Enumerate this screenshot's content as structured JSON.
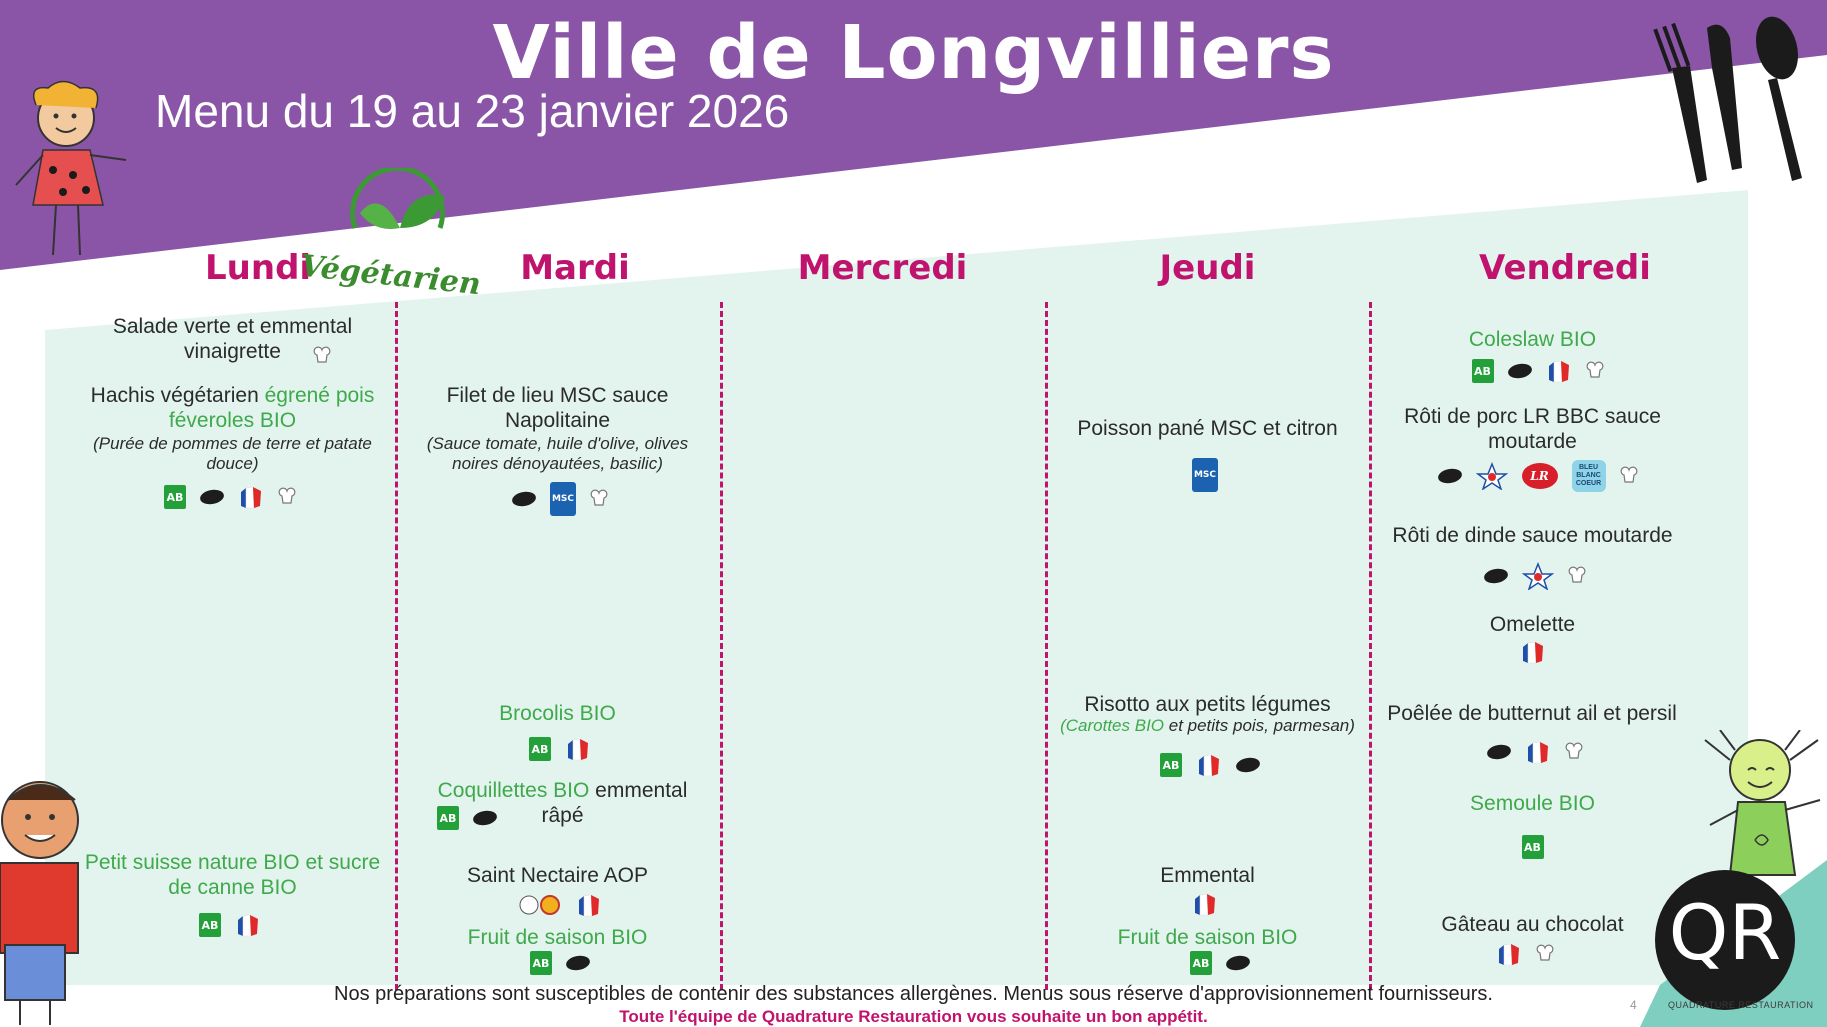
{
  "header": {
    "title": "Ville de Longvilliers",
    "subtitle": "Menu du 19 au 23 janvier 2026"
  },
  "days": {
    "lundi": {
      "name": "Lundi",
      "badge": "Végétarien"
    },
    "mardi": {
      "name": "Mardi"
    },
    "mercredi": {
      "name": "Mercredi"
    },
    "jeudi": {
      "name": "Jeudi"
    },
    "vendredi": {
      "name": "Vendredi"
    }
  },
  "lundi": {
    "starter": "Salade verte et emmental vinaigrette",
    "main_part1": "Hachis végétarien ",
    "main_part2": "égrené pois féveroles BIO",
    "main_note": "(Purée de pommes de terre et patate douce)",
    "dessert": "Petit suisse nature BIO et sucre de canne BIO"
  },
  "mardi": {
    "main": "Filet de lieu MSC sauce Napolitaine",
    "main_note": "(Sauce tomate, huile d'olive, olives noires dénoyautées, basilic)",
    "side1": "Brocolis BIO",
    "side2_part1": "Coquillettes BIO",
    "side2_part2": " emmental râpé",
    "cheese": "Saint Nectaire AOP",
    "dessert": "Fruit de saison BIO"
  },
  "jeudi": {
    "main": "Poisson pané MSC et citron",
    "side": "Risotto aux petits légumes",
    "side_note_part1": "(Carottes BIO",
    "side_note_part2": " et petits pois, parmesan)",
    "cheese": "Emmental",
    "dessert": "Fruit de saison BIO"
  },
  "vendredi": {
    "starter": "Coleslaw BIO",
    "main1": "Rôti de porc LR BBC sauce moutarde",
    "main2": "Rôti de dinde sauce moutarde",
    "main3": "Omelette",
    "side1": "Poêlée de butternut ail et persil",
    "side2": "Semoule BIO",
    "dessert": "Gâteau au chocolat"
  },
  "labels": {
    "ab": "AB",
    "msc": "MSC",
    "lr": "Label Rouge",
    "bbc": "BLEU BLANC COEUR",
    "aoc": "AOC"
  },
  "footer": {
    "disclaimer": "Nos préparations sont susceptibles de contenir des substances allergènes. Menus sous réserve d'approvisionnement fournisseurs.",
    "wish": "Toute l'équipe de Quadrature Restauration vous souhaite un bon appétit.",
    "page_number": "4",
    "company": "QUADRATURE RESTAURATION",
    "logo_text": "QR"
  },
  "colors": {
    "purple": "#8a55a6",
    "mint": "#e3f4ef",
    "teal": "#7fcfc0",
    "magenta": "#c0136d",
    "green_text": "#3fa94b"
  }
}
